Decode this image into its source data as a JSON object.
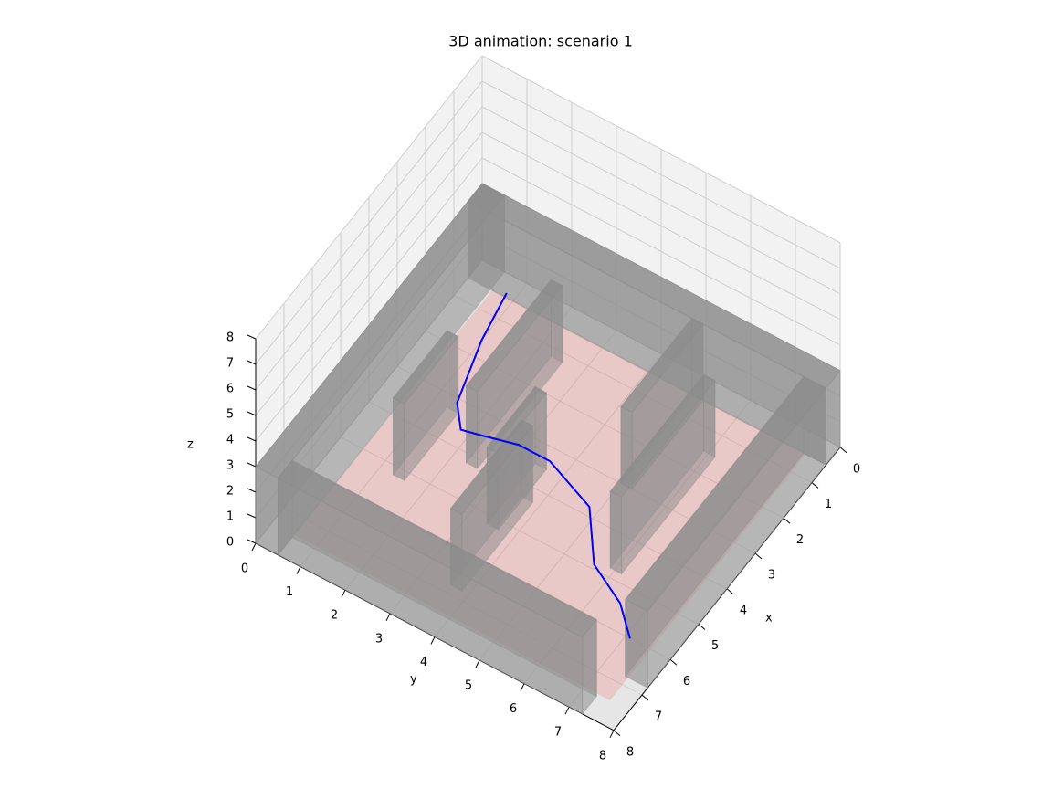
{
  "chart_data": {
    "type": "3d-path",
    "title": "3D animation: scenario 1",
    "xlabel": "x",
    "ylabel": "y",
    "zlabel": "z",
    "xlim": [
      0,
      8
    ],
    "ylim": [
      0,
      8
    ],
    "zlim": [
      0,
      8
    ],
    "xticks": [
      0,
      1,
      2,
      3,
      4,
      5,
      6,
      7,
      8
    ],
    "yticks": [
      0,
      1,
      2,
      3,
      4,
      5,
      6,
      7,
      8
    ],
    "zticks": [
      0,
      1,
      2,
      3,
      4,
      5,
      6,
      7,
      8
    ],
    "grid": true,
    "path": {
      "color": "#0000ff",
      "x": [
        0.4,
        1.6,
        3.1,
        3.6,
        3.5,
        3.3,
        3.3,
        3.8,
        4.9,
        5.4,
        6.0
      ],
      "y": [
        0.8,
        1.0,
        1.4,
        1.8,
        2.2,
        2.9,
        3.6,
        4.8,
        5.6,
        6.5,
        7.1
      ]
    },
    "obstacle_color": "#8c8c8c",
    "obstacles": [
      {
        "x": [
          0,
          0.5
        ],
        "y": [
          0,
          8
        ],
        "z": [
          0,
          3
        ]
      },
      {
        "x": [
          0,
          8
        ],
        "y": [
          0,
          0.5
        ],
        "z": [
          0,
          3
        ]
      },
      {
        "x": [
          0.5,
          6.8
        ],
        "y": [
          7.5,
          8
        ],
        "z": [
          0,
          3
        ]
      },
      {
        "x": [
          1.2,
          4.2
        ],
        "y": [
          2.3,
          2.55
        ],
        "z": [
          0,
          3
        ]
      },
      {
        "x": [
          3.3,
          5.2
        ],
        "y": [
          1.3,
          1.55
        ],
        "z": [
          0,
          3
        ]
      },
      {
        "x": [
          3.5,
          5.2
        ],
        "y": [
          3.4,
          3.65
        ],
        "z": [
          0,
          3
        ]
      },
      {
        "x": [
          4.3,
          6.8
        ],
        "y": [
          3.6,
          3.85
        ],
        "z": [
          0,
          3
        ]
      },
      {
        "x": [
          0.5,
          3.0
        ],
        "y": [
          5.0,
          5.25
        ],
        "z": [
          0,
          3
        ]
      },
      {
        "x": [
          1.5,
          4.8
        ],
        "y": [
          5.9,
          6.15
        ],
        "z": [
          0,
          3
        ]
      },
      {
        "x": [
          7.5,
          8
        ],
        "y": [
          0.5,
          7.3
        ],
        "z": [
          0,
          3
        ]
      }
    ]
  }
}
